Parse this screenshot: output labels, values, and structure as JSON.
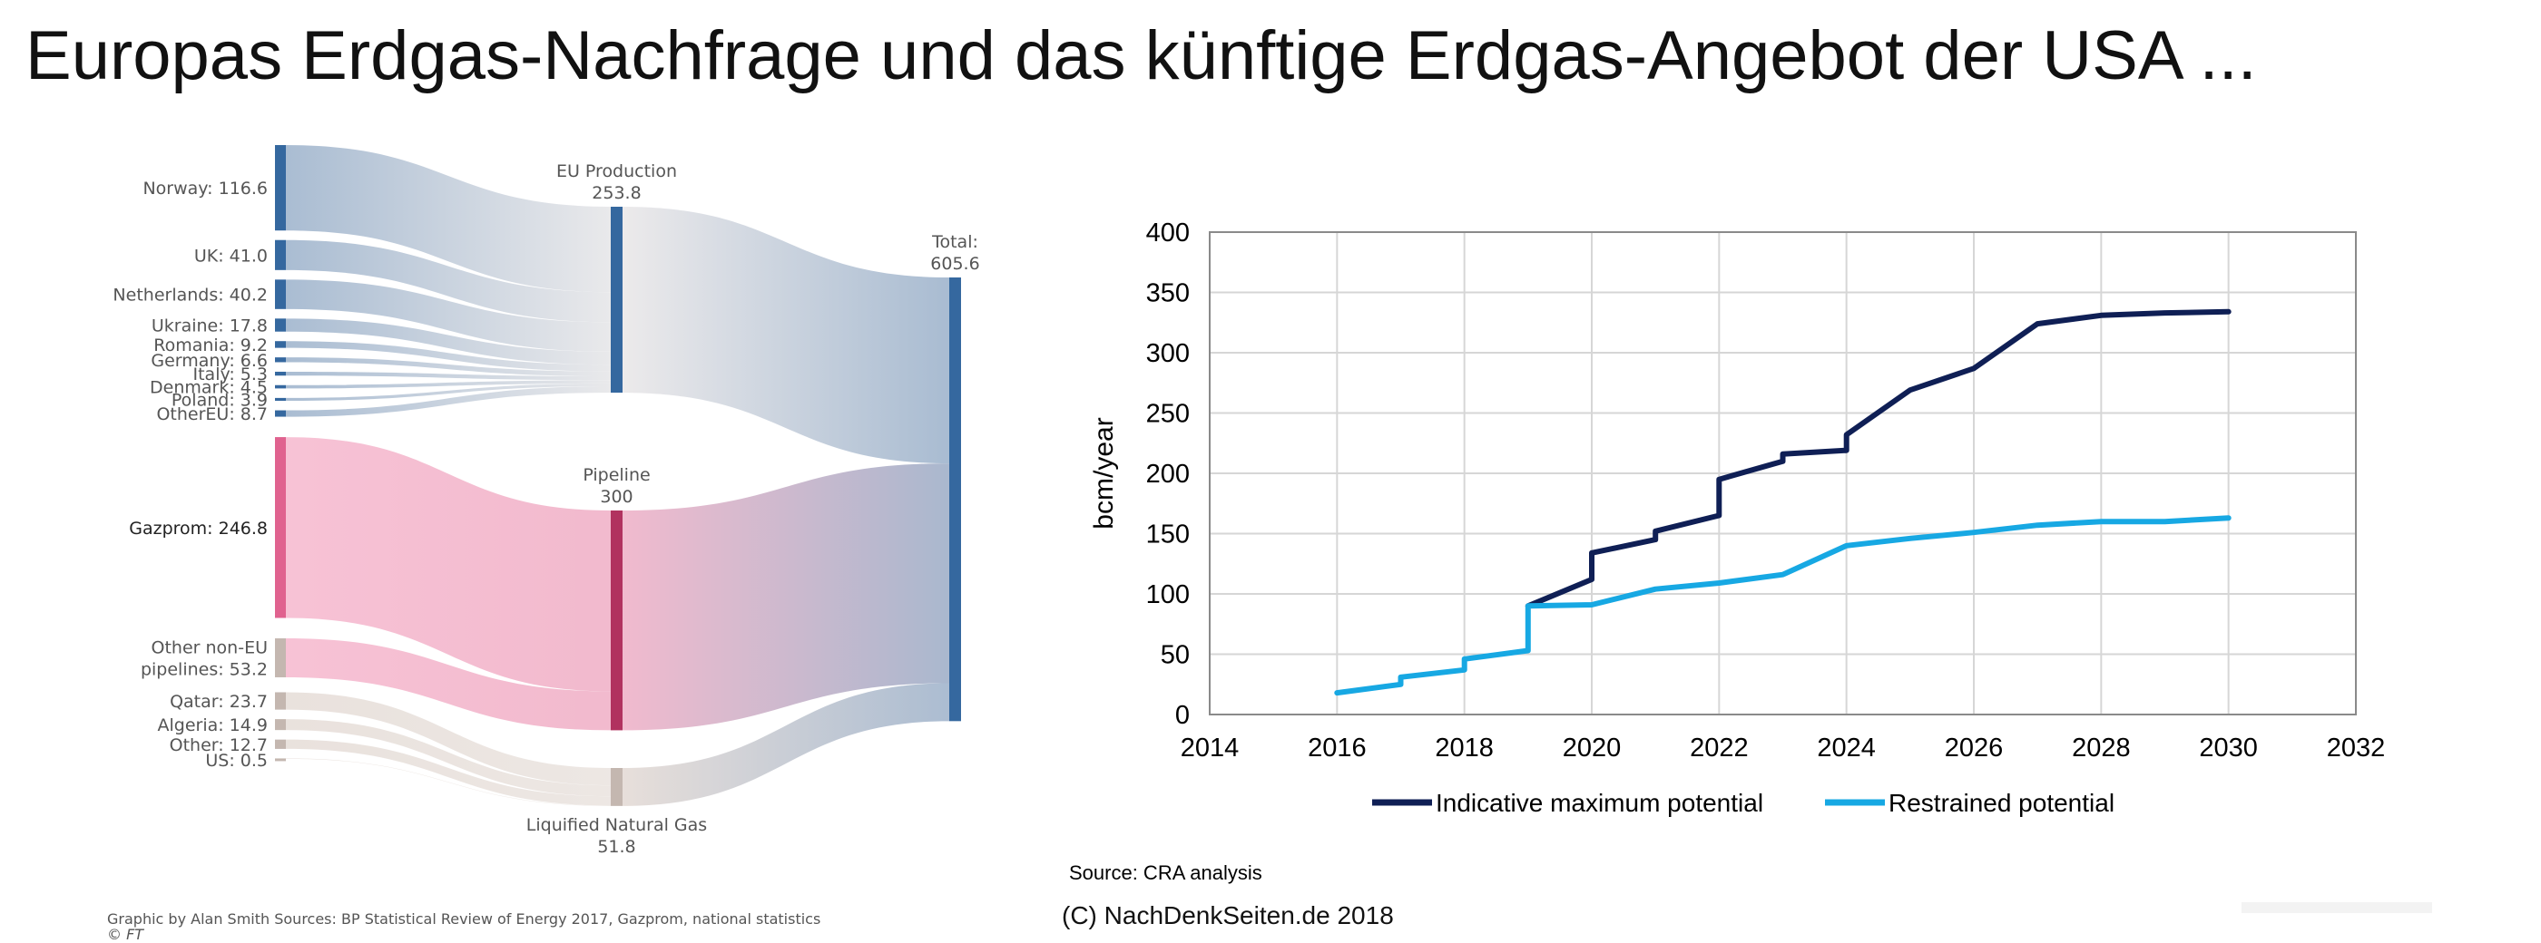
{
  "page": {
    "title": "Europas Erdgas-Nachfrage und das künftige Erdgas-Angebot der USA ..."
  },
  "colors": {
    "blue_node": "#35689f",
    "blue_flow": "#a5b9d0",
    "pink_node": "#e0628f",
    "pink_flow": "#f2a4bf",
    "crimson_node": "#b1325f",
    "beige_node": "#c4b7b0",
    "beige_flow": "#e4dbd6",
    "navy_line": "#0f1f55",
    "cyan_line": "#17a8e3"
  },
  "chart_data": [
    {
      "type": "sankey",
      "sources": [
        {
          "label": "Norway: 116.6",
          "name": "Norway",
          "value": 116.6,
          "target": "EU Production"
        },
        {
          "label": "UK: 41.0",
          "name": "UK",
          "value": 41.0,
          "target": "EU Production"
        },
        {
          "label": "Netherlands: 40.2",
          "name": "Netherlands",
          "value": 40.2,
          "target": "EU Production"
        },
        {
          "label": "Ukraine: 17.8",
          "name": "Ukraine",
          "value": 17.8,
          "target": "EU Production"
        },
        {
          "label": "Romania: 9.2",
          "name": "Romania",
          "value": 9.2,
          "target": "EU Production"
        },
        {
          "label": "Germany: 6.6",
          "name": "Germany",
          "value": 6.6,
          "target": "EU Production"
        },
        {
          "label": "Italy: 5.3",
          "name": "Italy",
          "value": 5.3,
          "target": "EU Production"
        },
        {
          "label": "Denmark: 4.5",
          "name": "Denmark",
          "value": 4.5,
          "target": "EU Production"
        },
        {
          "label": "Poland: 3.9",
          "name": "Poland",
          "value": 3.9,
          "target": "EU Production"
        },
        {
          "label": "OtherEU: 8.7",
          "name": "OtherEU",
          "value": 8.7,
          "target": "EU Production"
        },
        {
          "label": "Gazprom: 246.8",
          "name": "Gazprom",
          "value": 246.8,
          "target": "Pipeline"
        },
        {
          "label_lines": [
            "Other non-EU",
            "pipelines: 53.2"
          ],
          "name": "Other non-EU pipelines",
          "value": 53.2,
          "target": "Pipeline"
        },
        {
          "label": "Qatar: 23.7",
          "name": "Qatar",
          "value": 23.7,
          "target": "Liquified Natural Gas"
        },
        {
          "label": "Algeria: 14.9",
          "name": "Algeria",
          "value": 14.9,
          "target": "Liquified Natural Gas"
        },
        {
          "label": "Other: 12.7",
          "name": "Other",
          "value": 12.7,
          "target": "Liquified Natural Gas"
        },
        {
          "label": "US: 0.5",
          "name": "US",
          "value": 0.5,
          "target": "Liquified Natural Gas"
        }
      ],
      "middle": [
        {
          "name": "EU Production",
          "value_label": "253.8",
          "value": 253.8
        },
        {
          "name": "Pipeline",
          "value_label": "300",
          "value": 300
        },
        {
          "name": "Liquified Natural Gas",
          "value_label": "51.8",
          "value": 51.8
        }
      ],
      "total": {
        "name": "Total:",
        "value_label": "605.6",
        "value": 605.6
      },
      "credit": "Graphic by Alan Smith   Sources: BP Statistical Review of Energy 2017, Gazprom, national statistics",
      "copyright": "© FT"
    },
    {
      "type": "line",
      "ylabel": "bcm/year",
      "xlim": [
        2014,
        2032
      ],
      "ylim": [
        0,
        400
      ],
      "x_ticks": [
        2014,
        2016,
        2018,
        2020,
        2022,
        2024,
        2026,
        2028,
        2030,
        2032
      ],
      "y_ticks": [
        0,
        50,
        100,
        150,
        200,
        250,
        300,
        350,
        400
      ],
      "grid": true,
      "legend_position": "bottom",
      "series": [
        {
          "name": "Indicative maximum potential",
          "color": "#0f1f55",
          "points": [
            [
              2019,
              90
            ],
            [
              2020,
              112
            ],
            [
              2020,
              134
            ],
            [
              2021,
              145
            ],
            [
              2021,
              152
            ],
            [
              2022,
              165
            ],
            [
              2022,
              195
            ],
            [
              2023,
              210
            ],
            [
              2023,
              216
            ],
            [
              2024,
              219
            ],
            [
              2024,
              232
            ],
            [
              2025,
              269
            ],
            [
              2026,
              287
            ],
            [
              2027,
              324
            ],
            [
              2028,
              331
            ],
            [
              2029,
              333
            ],
            [
              2030,
              334
            ]
          ]
        },
        {
          "name": "Restrained potential",
          "color": "#17a8e3",
          "points": [
            [
              2016,
              18
            ],
            [
              2017,
              25
            ],
            [
              2017,
              31
            ],
            [
              2018,
              37
            ],
            [
              2018,
              46
            ],
            [
              2019,
              53
            ],
            [
              2019,
              90
            ],
            [
              2020,
              91
            ],
            [
              2021,
              104
            ],
            [
              2022,
              109
            ],
            [
              2023,
              116
            ],
            [
              2024,
              140
            ],
            [
              2025,
              146
            ],
            [
              2026,
              151
            ],
            [
              2027,
              157
            ],
            [
              2028,
              160
            ],
            [
              2029,
              160
            ],
            [
              2030,
              163
            ]
          ]
        }
      ]
    }
  ],
  "source_note": "Source: CRA analysis",
  "copyright_note": "(C) NachDenkSeiten.de 2018"
}
